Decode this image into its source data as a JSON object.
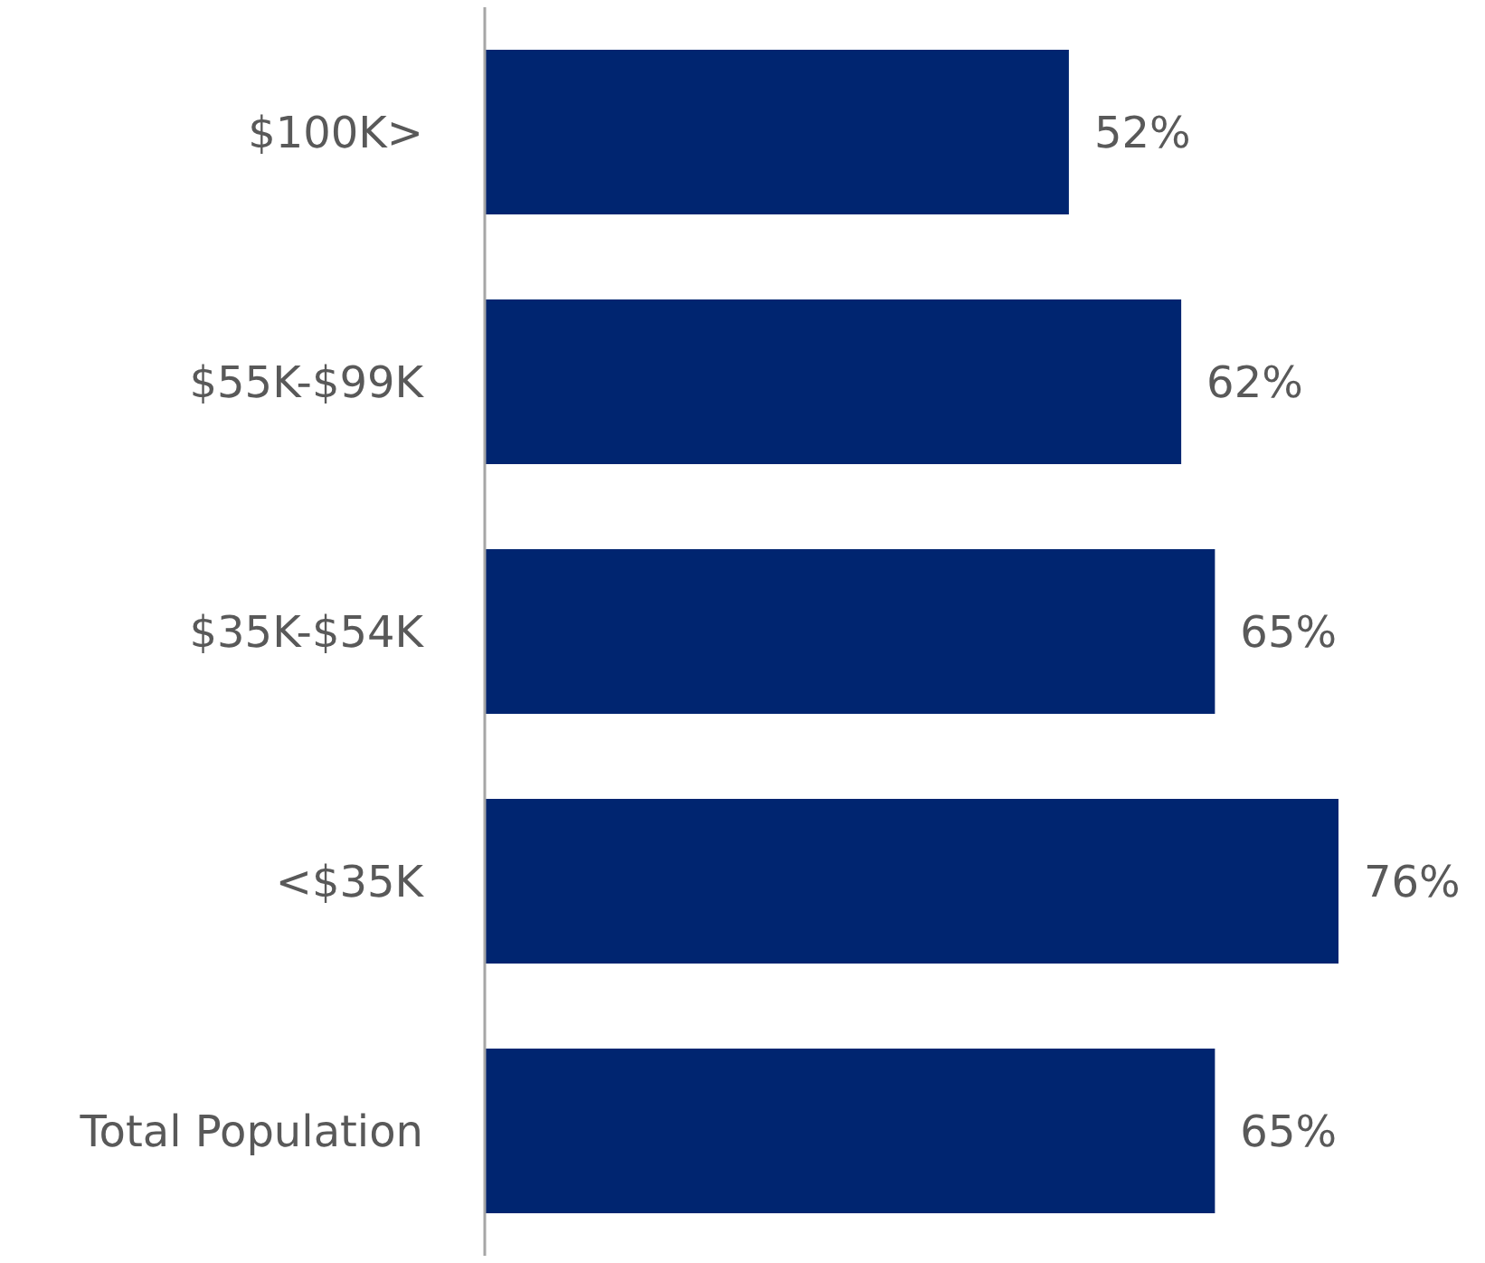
{
  "chart_data": {
    "type": "bar",
    "orientation": "horizontal",
    "categories": [
      "$100K>",
      "$55K-$99K",
      "$35K-$54K",
      "<$35K",
      "Total Population"
    ],
    "values": [
      52,
      62,
      65,
      76,
      65
    ],
    "value_labels": [
      "52%",
      "62%",
      "65%",
      "76%",
      "65%"
    ],
    "color": "#002570"
  }
}
